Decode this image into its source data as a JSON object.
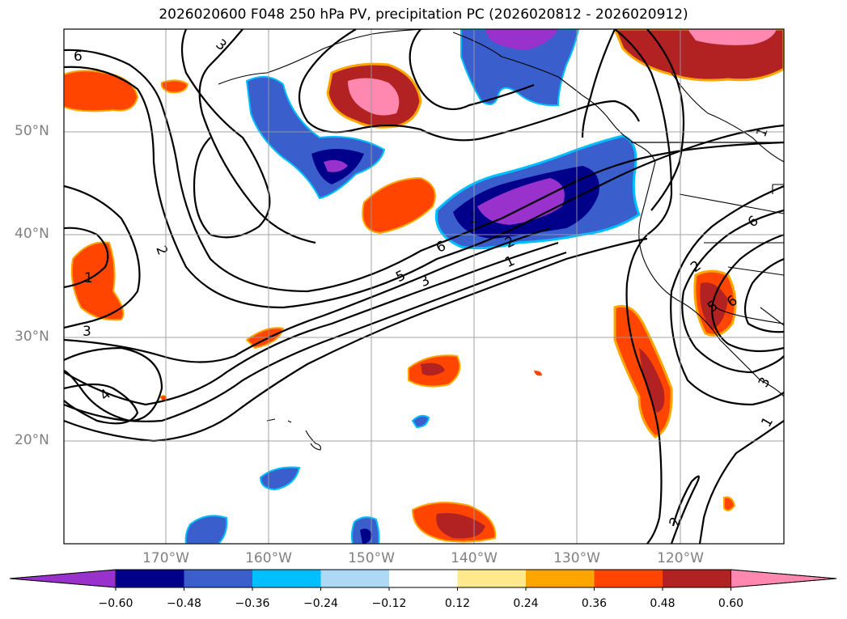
{
  "title": "2026020600 F048 250 hPa PV, precipitation PC (2026020812 - 2026020912)",
  "lat_labels": [
    "50°N",
    "40°N",
    "30°N",
    "20°N"
  ],
  "lon_labels": [
    "170°W",
    "160°W",
    "150°W",
    "140°W",
    "130°W",
    "120°W"
  ],
  "contour_labels": [
    "6",
    "3",
    "2",
    "1",
    "3",
    "4",
    "6",
    "5",
    "3",
    "1",
    "2",
    "1",
    "2",
    "5",
    "6",
    "3",
    "1",
    "1",
    "2",
    "6"
  ],
  "colorbar": {
    "ticks": [
      "−0.60",
      "−0.48",
      "−0.36",
      "−0.24",
      "−0.12",
      "0.12",
      "0.24",
      "0.36",
      "0.48",
      "0.60"
    ],
    "colors": [
      "#9932CC",
      "#00008B",
      "#3A5FCD",
      "#00BFFF",
      "#ADD8F6",
      "#FFFFFF",
      "#FFE98C",
      "#FFA500",
      "#FF4500",
      "#B22222",
      "#FF88B0"
    ]
  }
}
